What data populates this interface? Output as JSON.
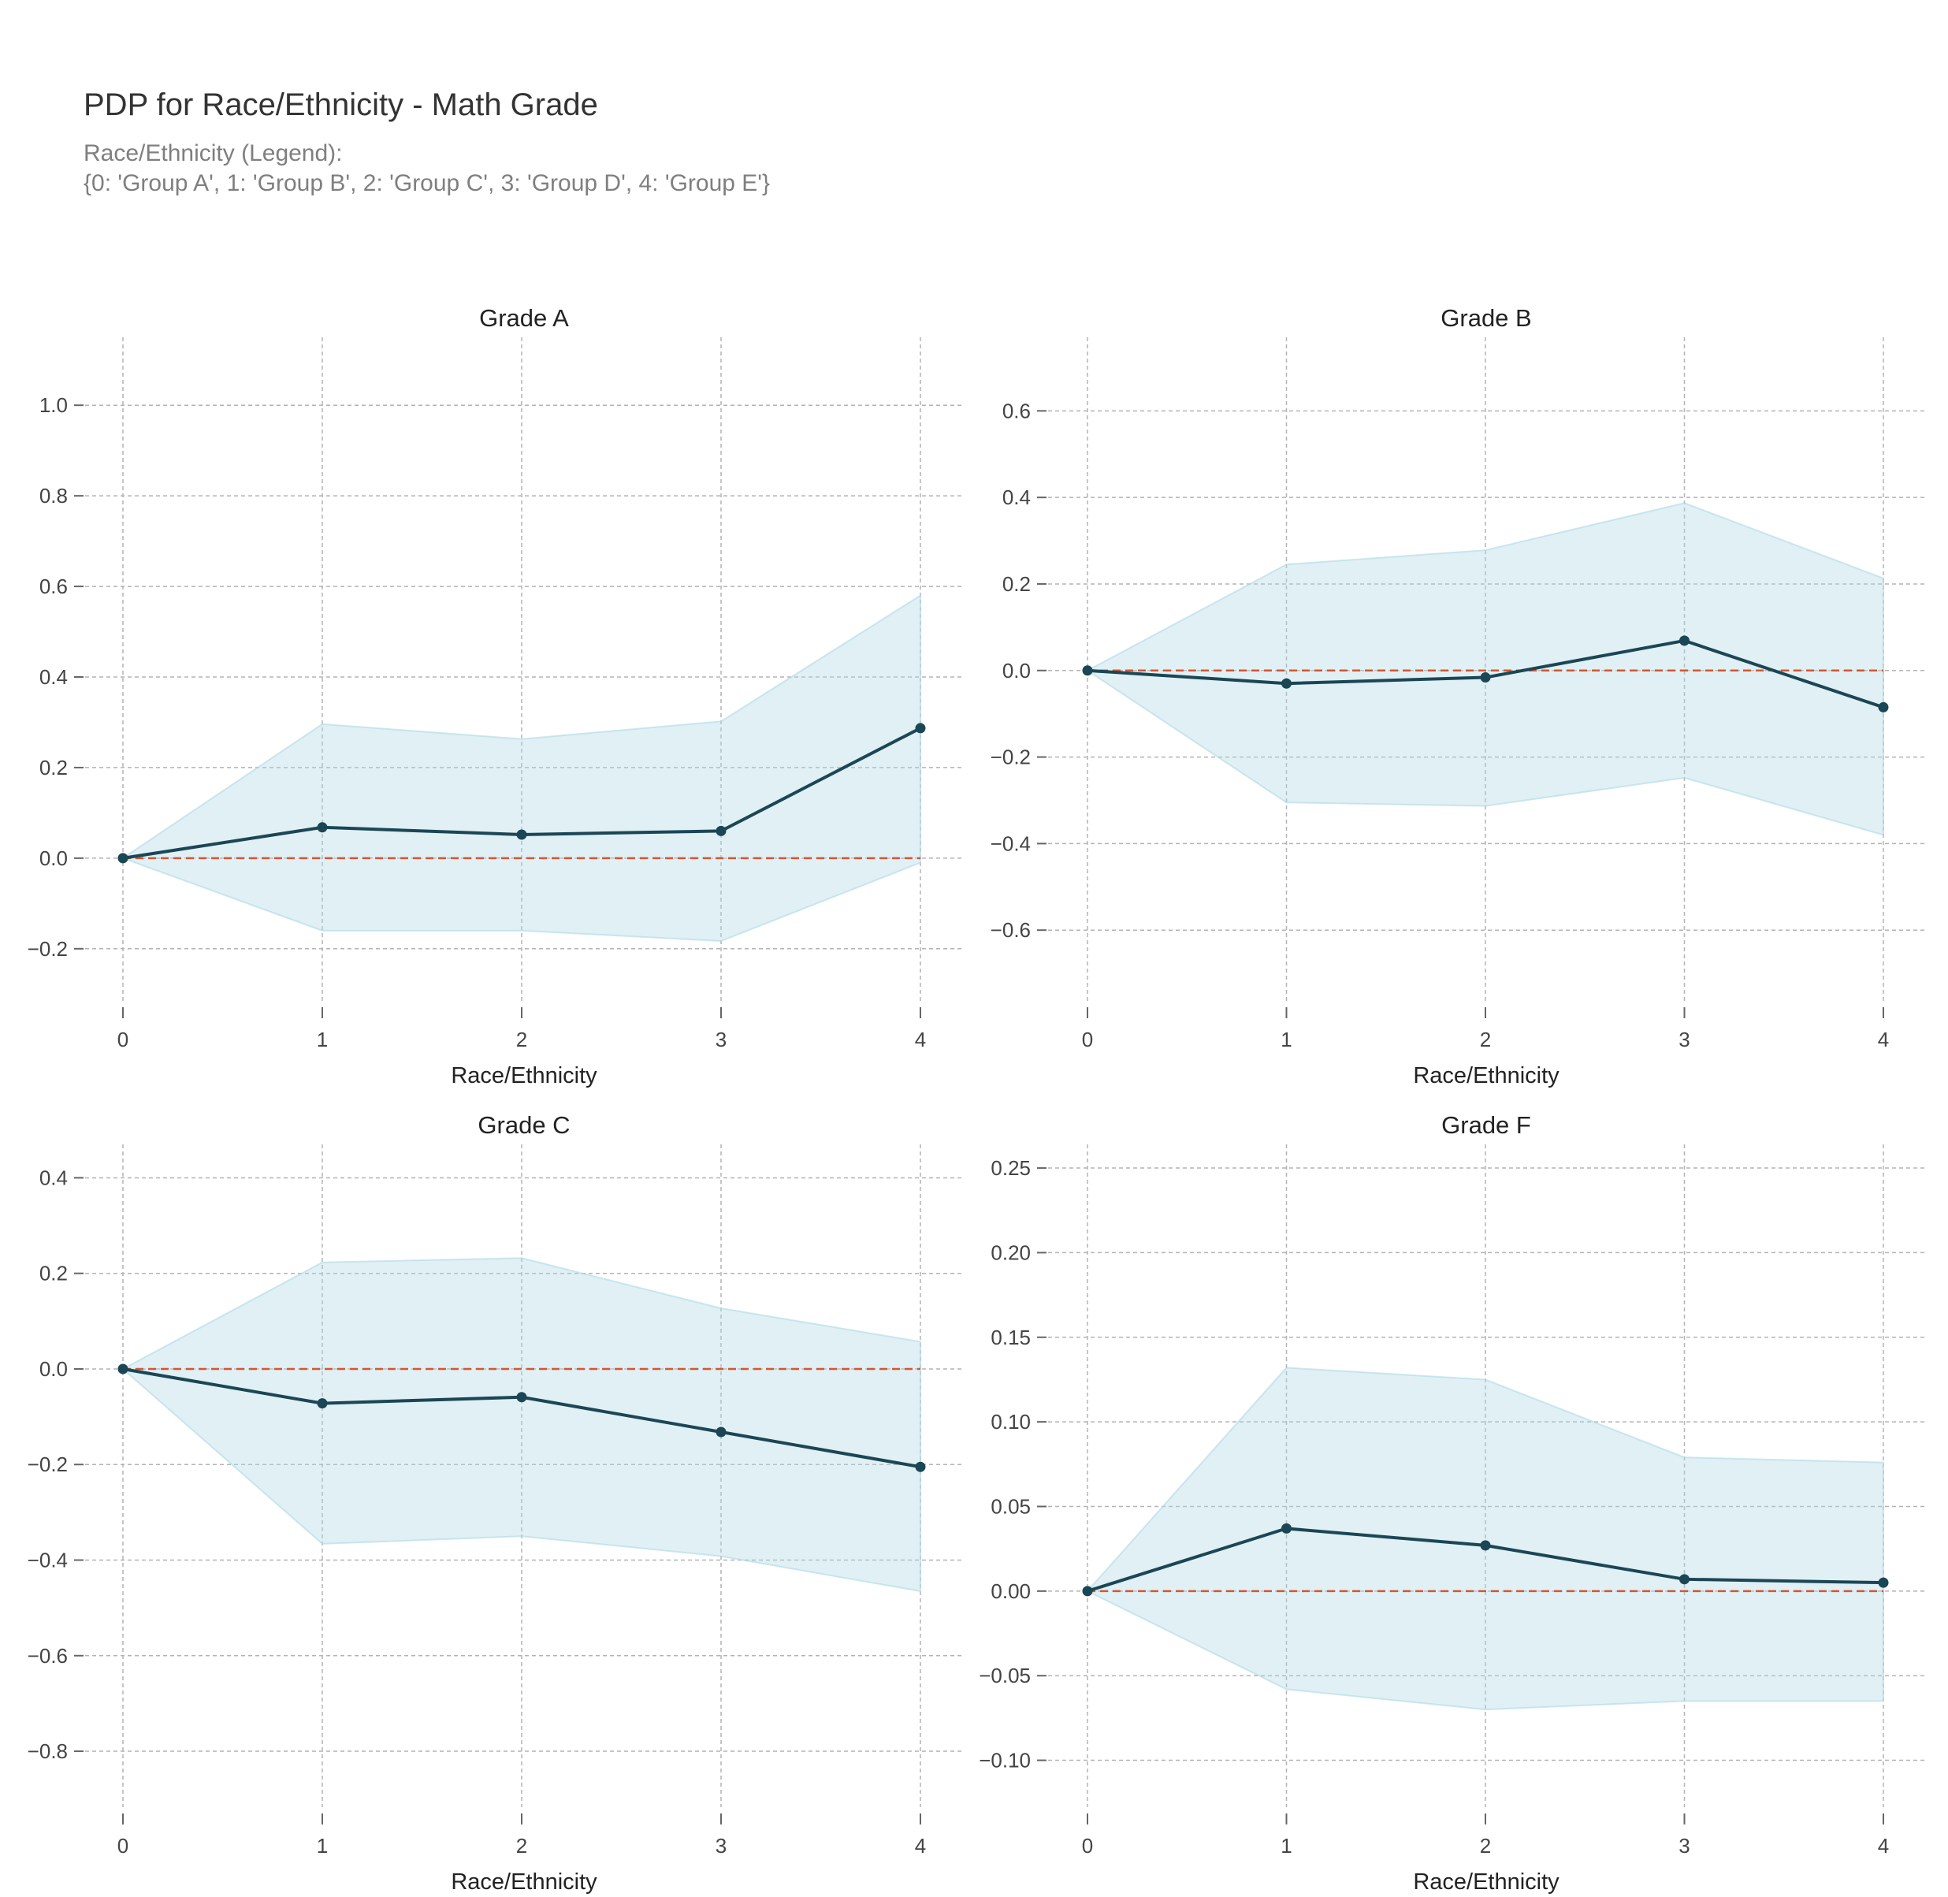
{
  "header": {
    "title": "PDP for Race/Ethnicity - Math Grade",
    "subtitle_line1": "Race/Ethnicity (Legend):",
    "subtitle_line2": "{0: 'Group A', 1: 'Group B', 2: 'Group C', 3: 'Group D', 4: 'Group E'}"
  },
  "colors": {
    "line": "#1b4655",
    "band": "#add8e6",
    "reference": "#d9552e",
    "grid": "#b3b3b3"
  },
  "chart_data": [
    {
      "type": "line",
      "title": "Grade A",
      "xlabel": "Race/Ethnicity",
      "ylabel": "",
      "x": [
        0,
        1,
        2,
        3,
        4
      ],
      "y": [
        0.0,
        0.068,
        0.052,
        0.06,
        0.287
      ],
      "lower": [
        0.0,
        -0.16,
        -0.16,
        -0.183,
        -0.01
      ],
      "upper": [
        0.0,
        0.296,
        0.263,
        0.302,
        0.58
      ],
      "reference_line": 0,
      "ylim": [
        -0.35,
        1.15
      ],
      "yticks": [
        -0.2,
        0.0,
        0.2,
        0.4,
        0.6,
        0.8,
        1.0
      ],
      "ytick_labels": [
        "−0.2",
        "0.0",
        "0.2",
        "0.4",
        "0.6",
        "0.8",
        "1.0"
      ],
      "xticks": [
        0,
        1,
        2,
        3,
        4
      ],
      "grid": true
    },
    {
      "type": "line",
      "title": "Grade B",
      "xlabel": "Race/Ethnicity",
      "ylabel": "",
      "x": [
        0,
        1,
        2,
        3,
        4
      ],
      "y": [
        0.0,
        -0.03,
        -0.016,
        0.069,
        -0.085
      ],
      "lower": [
        0.0,
        -0.305,
        -0.313,
        -0.248,
        -0.38
      ],
      "upper": [
        0.0,
        0.245,
        0.278,
        0.387,
        0.213
      ],
      "reference_line": 0,
      "ylim": [
        -0.8,
        0.77
      ],
      "yticks": [
        -0.6,
        -0.4,
        -0.2,
        0.0,
        0.2,
        0.4,
        0.6
      ],
      "ytick_labels": [
        "−0.6",
        "−0.4",
        "−0.2",
        "0.0",
        "0.2",
        "0.4",
        "0.6"
      ],
      "xticks": [
        0,
        1,
        2,
        3,
        4
      ],
      "grid": true
    },
    {
      "type": "line",
      "title": "Grade C",
      "xlabel": "Race/Ethnicity",
      "ylabel": "",
      "x": [
        0,
        1,
        2,
        3,
        4
      ],
      "y": [
        0.0,
        -0.072,
        -0.059,
        -0.132,
        -0.205
      ],
      "lower": [
        0.0,
        -0.366,
        -0.35,
        -0.392,
        -0.465
      ],
      "upper": [
        0.0,
        0.223,
        0.232,
        0.127,
        0.057
      ],
      "reference_line": 0,
      "ylim": [
        -0.95,
        0.47
      ],
      "yticks": [
        -0.8,
        -0.6,
        -0.4,
        -0.2,
        0.0,
        0.2,
        0.4
      ],
      "ytick_labels": [
        "−0.8",
        "−0.6",
        "−0.4",
        "−0.2",
        "0.0",
        "0.2",
        "0.4"
      ],
      "xticks": [
        0,
        1,
        2,
        3,
        4
      ],
      "grid": true
    },
    {
      "type": "line",
      "title": "Grade F",
      "xlabel": "Race/Ethnicity",
      "ylabel": "",
      "x": [
        0,
        1,
        2,
        3,
        4
      ],
      "y": [
        0.0,
        0.037,
        0.027,
        0.007,
        0.005
      ],
      "lower": [
        0.0,
        -0.058,
        -0.07,
        -0.065,
        -0.065
      ],
      "upper": [
        0.0,
        0.132,
        0.125,
        0.079,
        0.076
      ],
      "reference_line": 0,
      "ylim": [
        -0.137,
        0.264
      ],
      "yticks": [
        -0.1,
        -0.05,
        0.0,
        0.05,
        0.1,
        0.15,
        0.2,
        0.25
      ],
      "ytick_labels": [
        "−0.10",
        "−0.05",
        "0.00",
        "0.05",
        "0.10",
        "0.15",
        "0.20",
        "0.25"
      ],
      "xticks": [
        0,
        1,
        2,
        3,
        4
      ],
      "grid": true
    }
  ]
}
